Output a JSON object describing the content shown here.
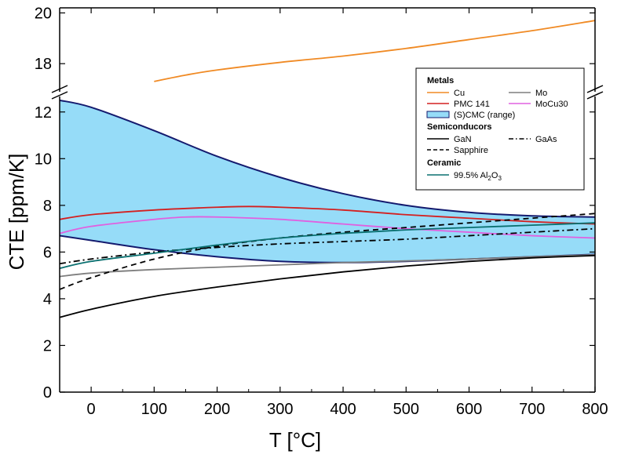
{
  "chart_data": {
    "type": "line",
    "xlabel": "T [°C]",
    "ylabel": "CTE [ppm/K]",
    "xlim": [
      -50,
      800
    ],
    "x_ticks": [
      0,
      100,
      200,
      300,
      400,
      500,
      600,
      700,
      800
    ],
    "y_ticks_lower": [
      0,
      2,
      4,
      6,
      8,
      10,
      12
    ],
    "y_ticks_upper": [
      18,
      20
    ],
    "y_break": {
      "lower_range": [
        0,
        13
      ],
      "upper_range": [
        16.8,
        20.2
      ]
    },
    "grid": false,
    "legend_position": "top-right",
    "groups": [
      {
        "heading": "Metals",
        "entries": [
          "Cu",
          "Mo",
          "PMC 141",
          "MoCu30",
          "(S)CMC (range)"
        ]
      },
      {
        "heading": "Semiconducors",
        "entries": [
          "GaN",
          "GaAs",
          "Sapphire"
        ]
      },
      {
        "heading": "Ceramic",
        "entries": [
          "99.5% Al2O3"
        ]
      }
    ],
    "alumina_label": {
      "main": "99.5% Al",
      "sub1": "2",
      "mid": "O",
      "sub2": "3"
    },
    "band": {
      "name": "(S)CMC (range)",
      "color": "#96dcf8",
      "x": [
        -50,
        0,
        100,
        200,
        300,
        400,
        500,
        600,
        700,
        800
      ],
      "upper": [
        12.5,
        12.2,
        11.2,
        10.1,
        9.2,
        8.5,
        8.0,
        7.7,
        7.55,
        7.5
      ],
      "lower": [
        6.7,
        6.5,
        6.1,
        5.8,
        5.6,
        5.55,
        5.6,
        5.7,
        5.8,
        5.9
      ]
    },
    "series": [
      {
        "name": "Cu",
        "color": "#f08a24",
        "dash": "solid",
        "axis": "upper",
        "x": [
          100,
          150,
          200,
          300,
          400,
          500,
          600,
          700,
          800
        ],
        "y": [
          17.3,
          17.55,
          17.75,
          18.05,
          18.3,
          18.6,
          18.95,
          19.3,
          19.7
        ]
      },
      {
        "name": "Mo",
        "color": "#7f7f7f",
        "dash": "solid",
        "axis": "lower",
        "x": [
          -50,
          0,
          100,
          200,
          300,
          400,
          500,
          600,
          700,
          800
        ],
        "y": [
          4.95,
          5.1,
          5.25,
          5.35,
          5.45,
          5.55,
          5.62,
          5.7,
          5.8,
          5.88
        ]
      },
      {
        "name": "PMC 141",
        "color": "#d42020",
        "dash": "solid",
        "axis": "lower",
        "x": [
          -50,
          0,
          100,
          200,
          250,
          300,
          400,
          500,
          600,
          700,
          800
        ],
        "y": [
          7.4,
          7.6,
          7.8,
          7.92,
          7.95,
          7.92,
          7.8,
          7.6,
          7.45,
          7.3,
          7.2
        ]
      },
      {
        "name": "MoCu30",
        "color": "#e060e0",
        "dash": "solid",
        "axis": "lower",
        "x": [
          -50,
          0,
          100,
          150,
          200,
          300,
          400,
          500,
          600,
          700,
          800
        ],
        "y": [
          6.8,
          7.1,
          7.4,
          7.5,
          7.5,
          7.4,
          7.2,
          7.0,
          6.85,
          6.7,
          6.6
        ]
      },
      {
        "name": "GaN",
        "color": "#000000",
        "dash": "solid",
        "axis": "lower",
        "x": [
          -50,
          0,
          100,
          200,
          300,
          400,
          500,
          600,
          700,
          800
        ],
        "y": [
          3.2,
          3.55,
          4.1,
          4.5,
          4.85,
          5.15,
          5.4,
          5.6,
          5.75,
          5.85
        ]
      },
      {
        "name": "GaAs",
        "color": "#000000",
        "dash": "dashdot",
        "axis": "lower",
        "x": [
          -50,
          0,
          100,
          200,
          300,
          400,
          500,
          600,
          700,
          800
        ],
        "y": [
          5.5,
          5.7,
          6.0,
          6.2,
          6.35,
          6.45,
          6.55,
          6.7,
          6.85,
          7.0
        ]
      },
      {
        "name": "Sapphire",
        "color": "#000000",
        "dash": "dashed",
        "axis": "lower",
        "x": [
          -50,
          0,
          100,
          200,
          300,
          400,
          500,
          600,
          700,
          800
        ],
        "y": [
          4.4,
          4.9,
          5.7,
          6.25,
          6.6,
          6.85,
          7.05,
          7.25,
          7.45,
          7.65
        ]
      },
      {
        "name": "99.5% Al2O3",
        "color": "#0a7070",
        "dash": "solid",
        "axis": "lower",
        "x": [
          -50,
          0,
          100,
          200,
          300,
          400,
          500,
          600,
          700,
          800
        ],
        "y": [
          5.3,
          5.6,
          5.95,
          6.3,
          6.6,
          6.8,
          6.95,
          7.05,
          7.15,
          7.25
        ]
      }
    ]
  }
}
